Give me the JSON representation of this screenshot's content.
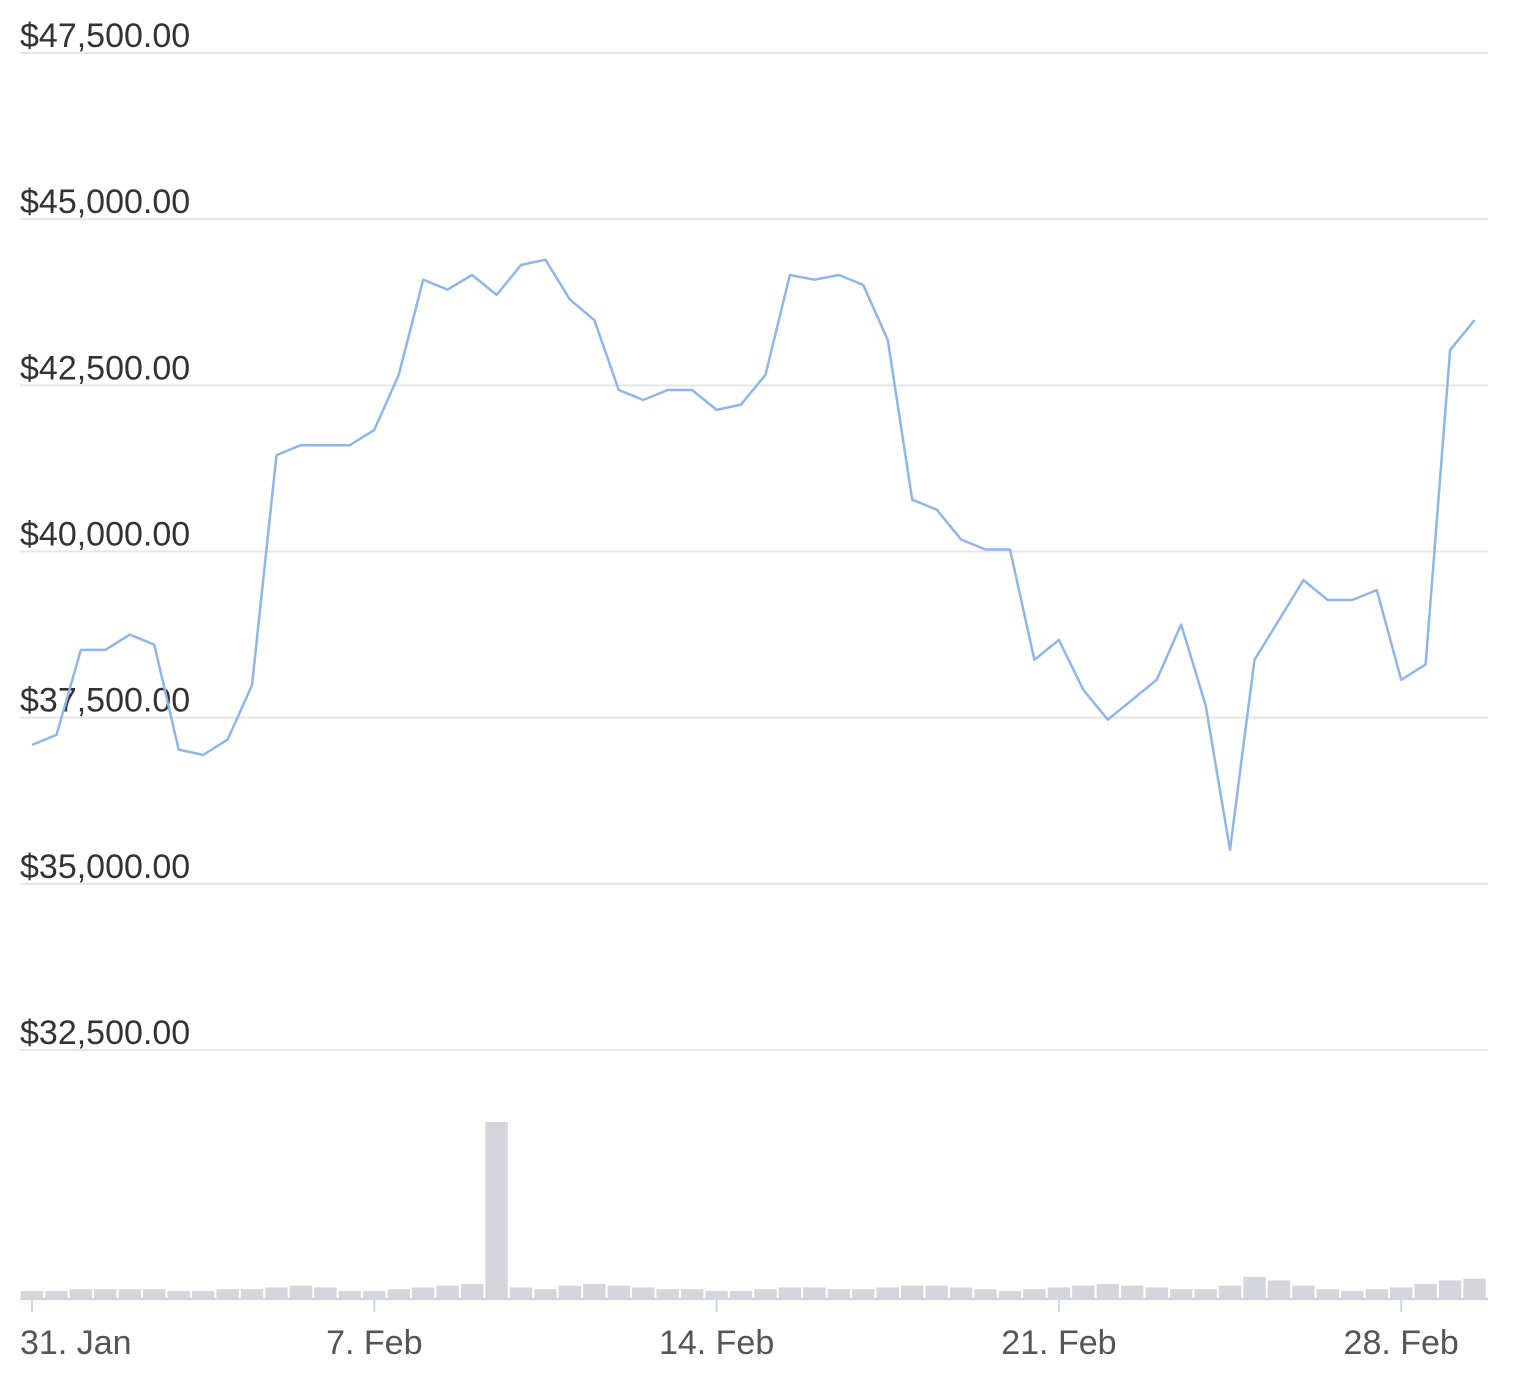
{
  "chart_data": [
    {
      "type": "line",
      "categories": [
        "31. Jan",
        null,
        null,
        null,
        null,
        null,
        null,
        null,
        null,
        null,
        null,
        null,
        null,
        null,
        "7. Feb",
        null,
        null,
        null,
        null,
        null,
        null,
        null,
        null,
        null,
        null,
        null,
        null,
        null,
        "14. Feb",
        null,
        null,
        null,
        null,
        null,
        null,
        null,
        null,
        null,
        null,
        null,
        null,
        null,
        "21. Feb",
        null,
        null,
        null,
        null,
        null,
        null,
        null,
        null,
        null,
        null,
        null,
        null,
        null,
        "28. Feb",
        null,
        null,
        null
      ],
      "values": [
        37090,
        37240,
        38520,
        38520,
        38750,
        38600,
        37020,
        36940,
        37170,
        37990,
        41450,
        41600,
        41600,
        41600,
        41830,
        42660,
        44090,
        43940,
        44160,
        43860,
        44310,
        44390,
        43790,
        43480,
        42430,
        42280,
        42430,
        42430,
        42130,
        42210,
        42660,
        44160,
        44090,
        44160,
        44010,
        43180,
        40780,
        40630,
        40180,
        40030,
        40030,
        38370,
        38670,
        37920,
        37470,
        37770,
        38070,
        38900,
        37690,
        35510,
        38370,
        38970,
        39570,
        39270,
        39270,
        39420,
        38070,
        38300,
        43030,
        43480
      ],
      "color": "#8fb6e6",
      "ylim": [
        32500,
        47500
      ],
      "yticks": [
        {
          "value": 32500,
          "label": "$32,500.00"
        },
        {
          "value": 35000,
          "label": "$35,000.00"
        },
        {
          "value": 37500,
          "label": "$37,500.00"
        },
        {
          "value": 40000,
          "label": "$40,000.00"
        },
        {
          "value": 42500,
          "label": "$42,500.00"
        },
        {
          "value": 45000,
          "label": "$45,000.00"
        },
        {
          "value": 47500,
          "label": "$47,500.00"
        }
      ],
      "grid": true
    },
    {
      "type": "bar",
      "values": [
        4,
        4,
        5,
        5,
        5,
        5,
        4,
        4,
        5,
        5,
        6,
        7,
        6,
        4,
        4,
        5,
        6,
        7,
        8,
        100,
        6,
        5,
        7,
        8,
        7,
        6,
        5,
        5,
        4,
        4,
        5,
        6,
        6,
        5,
        5,
        6,
        7,
        7,
        6,
        5,
        4,
        5,
        6,
        7,
        8,
        7,
        6,
        5,
        5,
        7,
        12,
        10,
        7,
        5,
        4,
        5,
        6,
        8,
        10,
        11
      ],
      "color": "#d5d6db",
      "ylim": [
        0,
        100
      ]
    }
  ]
}
